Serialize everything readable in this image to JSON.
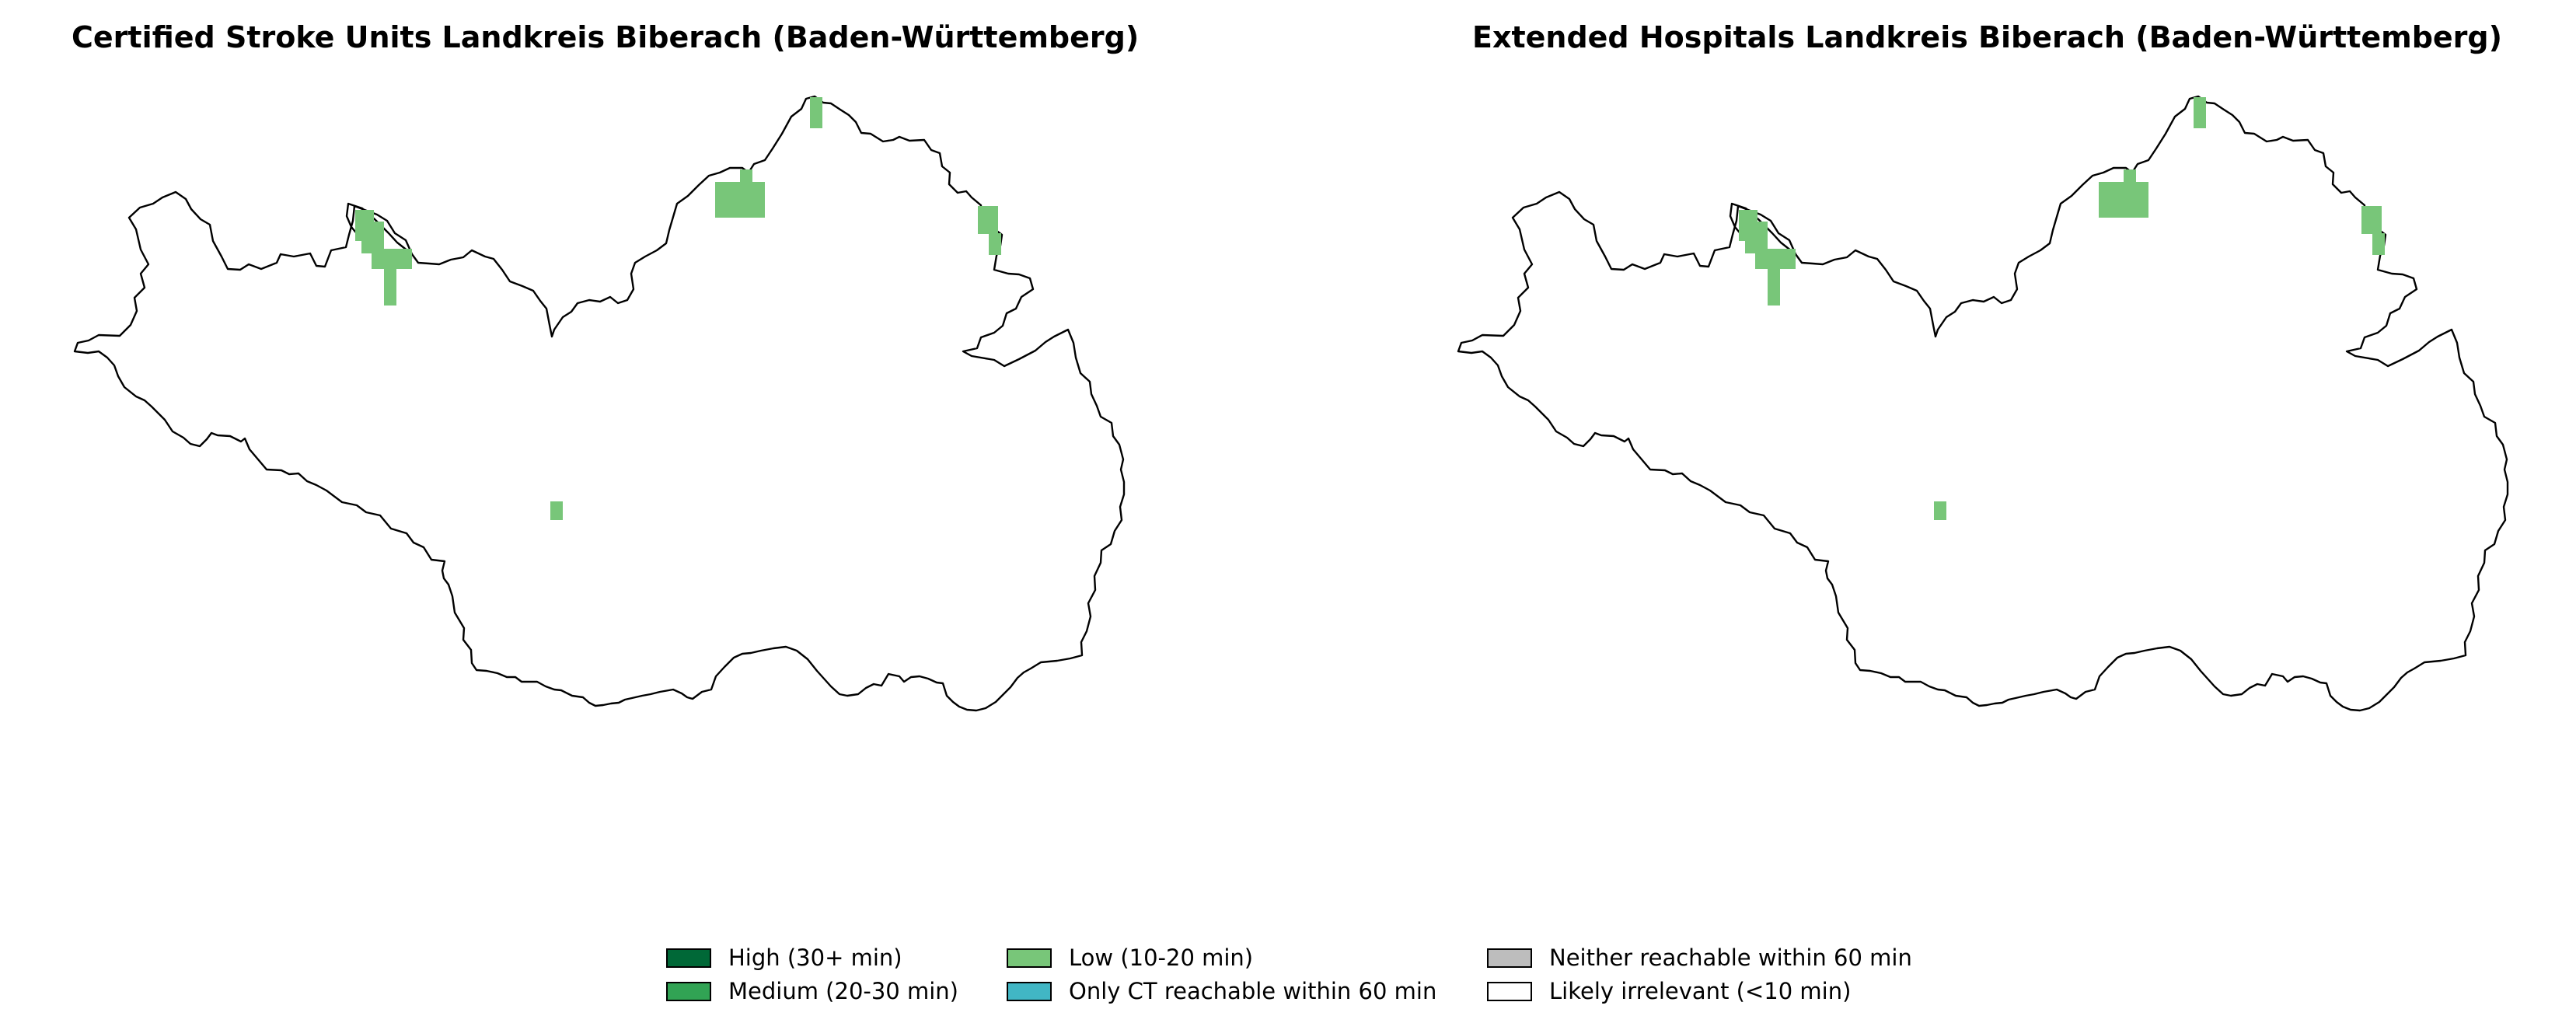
{
  "panels": [
    {
      "title": "Certified Stroke Units Landkreis Biberach (Baden-Württemberg)",
      "low_color": "#78c679"
    },
    {
      "title": "Extended Hospitals Landkreis Biberach (Baden-Württemberg)",
      "low_color": "#78c679"
    }
  ],
  "legend": {
    "items": [
      {
        "label": "High (30+ min)",
        "color": "#006837"
      },
      {
        "label": "Medium (20-30 min)",
        "color": "#31a354"
      },
      {
        "label": "Low (10-20 min)",
        "color": "#78c679"
      },
      {
        "label": "Only CT reachable within 60 min",
        "color": "#41b6c4"
      },
      {
        "label": "Neither reachable within 60 min",
        "color": "#bdbdbd"
      },
      {
        "label": "Likely irrelevant (<10 min)",
        "color": "#ffffff"
      }
    ]
  }
}
